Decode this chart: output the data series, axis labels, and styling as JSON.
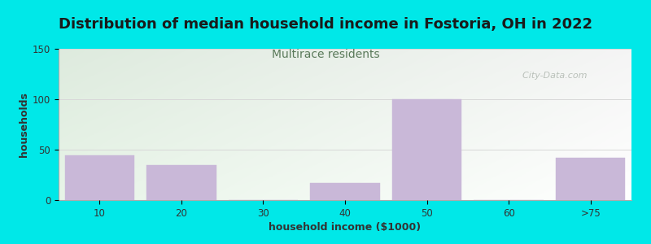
{
  "title": "Distribution of median household income in Fostoria, OH in 2022",
  "subtitle": "Multirace residents",
  "xlabel": "household income ($1000)",
  "ylabel": "households",
  "categories": [
    "10",
    "20",
    "30",
    "40",
    "50",
    "60",
    ">75"
  ],
  "values": [
    44,
    35,
    0,
    17,
    100,
    0,
    42
  ],
  "bar_color": "#c9b8d8",
  "bar_edgecolor": "#c9b8d8",
  "ylim": [
    0,
    150
  ],
  "yticks": [
    0,
    50,
    100,
    150
  ],
  "background_outer": "#00e8e8",
  "background_plot_topleft": "#e8f5e8",
  "background_plot_topright": "#f8f5f8",
  "background_plot_bottomleft": "#f0faf0",
  "background_plot_bottomright": "#ffffff",
  "title_fontsize": 13,
  "subtitle_fontsize": 10,
  "title_color": "#1a1a1a",
  "subtitle_color": "#5a7a5a",
  "axis_label_fontsize": 9,
  "tick_fontsize": 8.5,
  "watermark": "  City-Data.com",
  "watermark_color": "#b0b8b0",
  "grid_color": "#d8d8d8"
}
